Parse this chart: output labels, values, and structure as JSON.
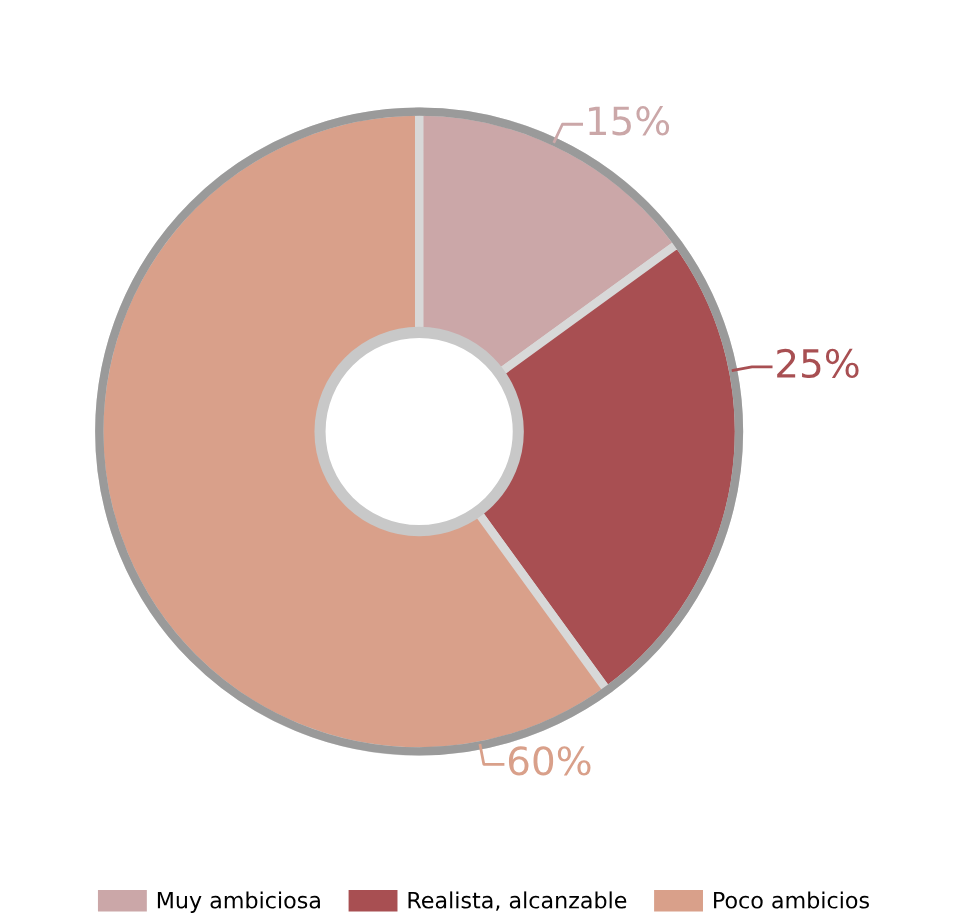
{
  "chart_data": {
    "type": "donut",
    "categories": [
      "Muy ambiciosa",
      "Realista, alcanzable",
      "Poco ambicios"
    ],
    "values": [
      15,
      25,
      60
    ],
    "value_labels": [
      "15%",
      "25%",
      "60%"
    ],
    "colors": [
      "#cba7a8",
      "#a84f52",
      "#d9a08a"
    ],
    "legend": "bottom"
  }
}
